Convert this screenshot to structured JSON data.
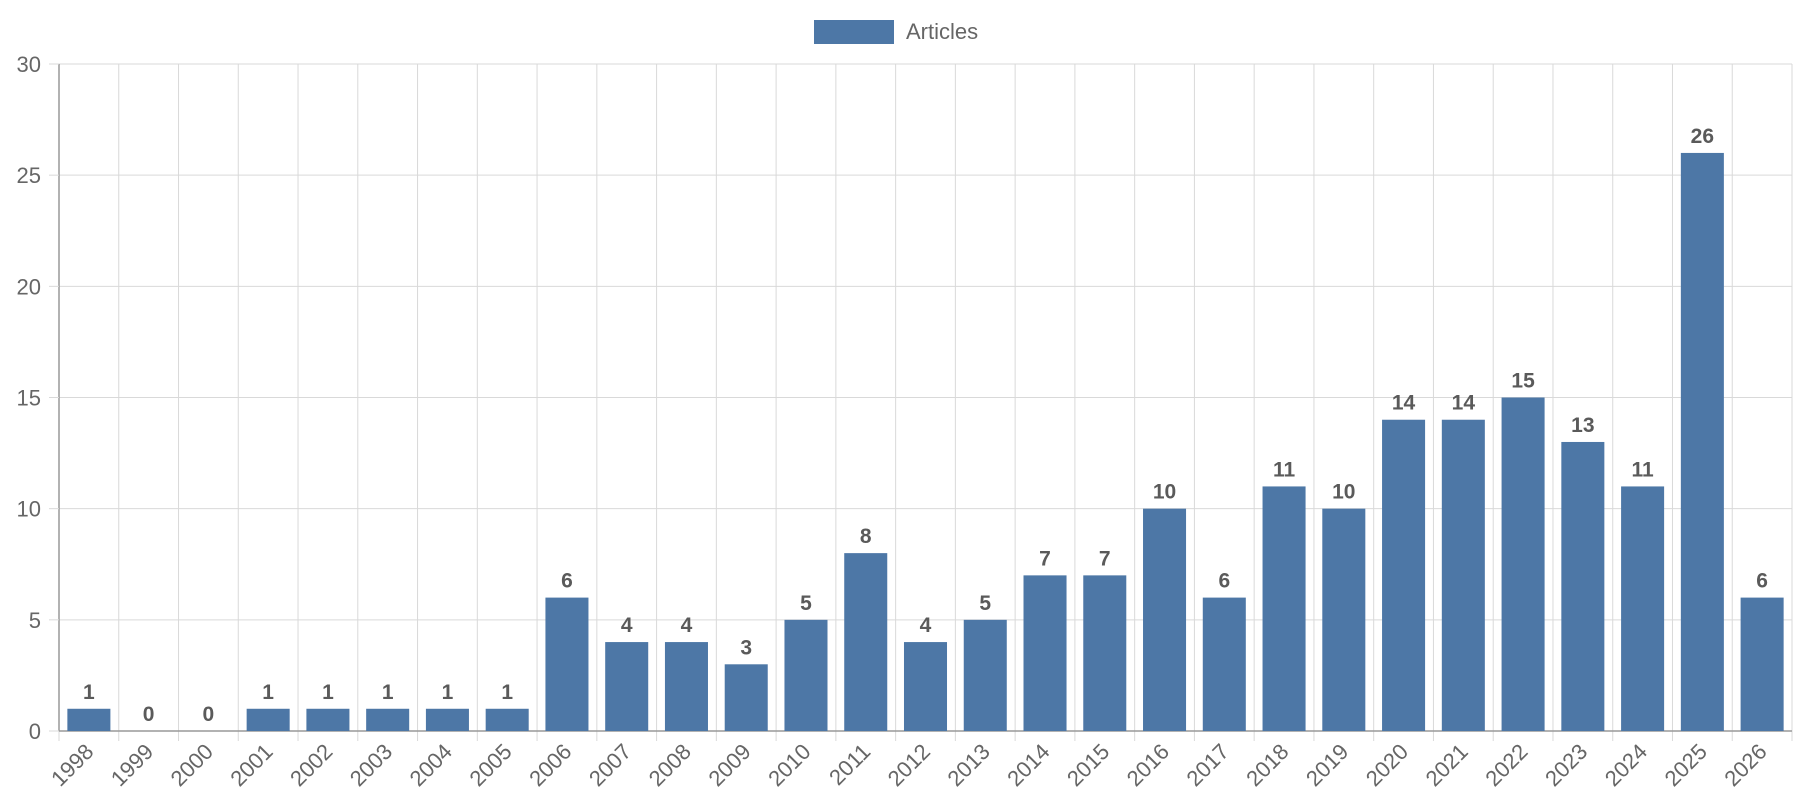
{
  "legend": {
    "label": "Articles",
    "position": "top"
  },
  "colors": {
    "bar": "#4d77a6",
    "grid": "#d9d9d9",
    "axis": "#999999",
    "text": "#666666",
    "value_label": "#5a5a5a"
  },
  "chart_data": {
    "type": "bar",
    "categories": [
      "1998",
      "1999",
      "2000",
      "2001",
      "2002",
      "2003",
      "2004",
      "2005",
      "2006",
      "2007",
      "2008",
      "2009",
      "2010",
      "2011",
      "2012",
      "2013",
      "2014",
      "2015",
      "2016",
      "2017",
      "2018",
      "2019",
      "2020",
      "2021",
      "2022",
      "2023",
      "2024",
      "2025",
      "2026"
    ],
    "series": [
      {
        "name": "Articles",
        "values": [
          1,
          0,
          0,
          1,
          1,
          1,
          1,
          1,
          6,
          4,
          4,
          3,
          5,
          8,
          4,
          5,
          7,
          7,
          10,
          6,
          11,
          10,
          14,
          14,
          15,
          13,
          11,
          26,
          6
        ]
      }
    ],
    "ylim": [
      0,
      30
    ],
    "yticks": [
      0,
      5,
      10,
      15,
      20,
      25,
      30
    ],
    "grid": true,
    "data_labels": true
  }
}
